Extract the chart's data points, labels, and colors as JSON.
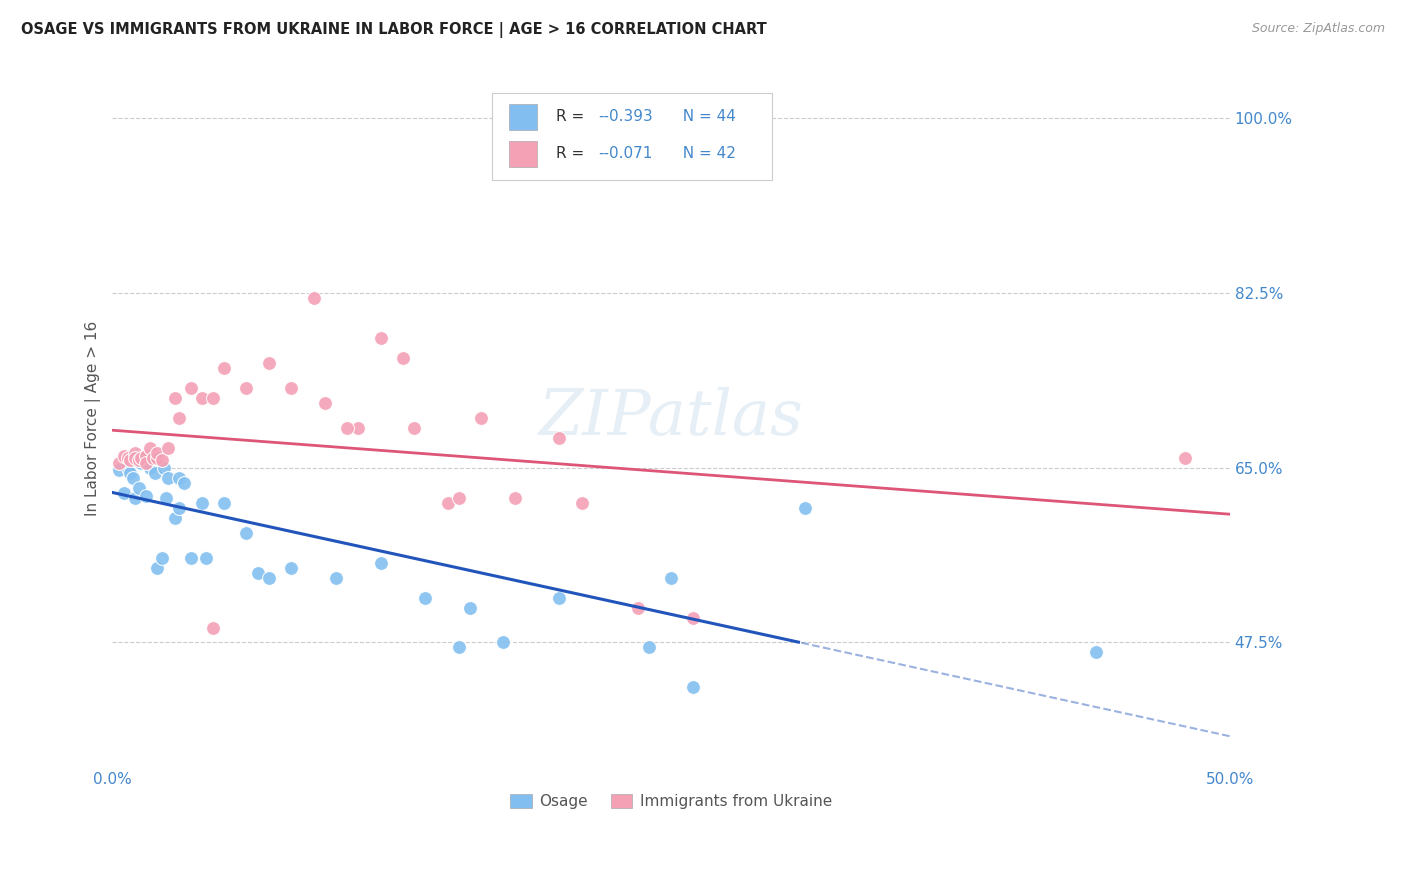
{
  "title": "OSAGE VS IMMIGRANTS FROM UKRAINE IN LABOR FORCE | AGE > 16 CORRELATION CHART",
  "source": "Source: ZipAtlas.com",
  "ylabel": "In Labor Force | Age > 16",
  "xlim": [
    0.0,
    0.5
  ],
  "ylim": [
    0.35,
    1.05
  ],
  "xticks": [
    0.0,
    0.1,
    0.2,
    0.3,
    0.4,
    0.5
  ],
  "xticklabels": [
    "0.0%",
    "",
    "",
    "",
    "",
    "50.0%"
  ],
  "ytick_values": [
    0.475,
    0.65,
    0.825,
    1.0
  ],
  "yticklabels": [
    "47.5%",
    "65.0%",
    "82.5%",
    "100.0%"
  ],
  "grid_color": "#cccccc",
  "background_color": "#ffffff",
  "watermark": "ZIPatlas",
  "legend_r1": "-0.393",
  "legend_n1": "44",
  "legend_r2": "-0.071",
  "legend_n2": "42",
  "legend_label1": "Osage",
  "legend_label2": "Immigrants from Ukraine",
  "osage_color": "#82bff0",
  "ukraine_color": "#f4a0b5",
  "line1_color": "#2255bb",
  "line2_color": "#dd5577",
  "title_color": "#222222",
  "axis_label_color": "#4488cc",
  "osage_x": [
    0.003,
    0.005,
    0.007,
    0.008,
    0.009,
    0.01,
    0.01,
    0.012,
    0.013,
    0.015,
    0.015,
    0.017,
    0.018,
    0.019,
    0.02,
    0.02,
    0.022,
    0.023,
    0.024,
    0.025,
    0.028,
    0.03,
    0.03,
    0.032,
    0.035,
    0.04,
    0.042,
    0.05,
    0.06,
    0.065,
    0.07,
    0.08,
    0.1,
    0.12,
    0.14,
    0.16,
    0.175,
    0.2,
    0.24,
    0.26,
    0.31,
    0.44,
    0.25,
    0.155
  ],
  "osage_y": [
    0.648,
    0.625,
    0.65,
    0.645,
    0.64,
    0.62,
    0.658,
    0.63,
    0.655,
    0.622,
    0.66,
    0.65,
    0.66,
    0.645,
    0.55,
    0.66,
    0.56,
    0.65,
    0.62,
    0.64,
    0.6,
    0.61,
    0.64,
    0.635,
    0.56,
    0.615,
    0.56,
    0.615,
    0.585,
    0.545,
    0.54,
    0.55,
    0.54,
    0.555,
    0.52,
    0.51,
    0.475,
    0.52,
    0.47,
    0.43,
    0.61,
    0.465,
    0.54,
    0.47
  ],
  "ukraine_x": [
    0.003,
    0.005,
    0.007,
    0.008,
    0.01,
    0.01,
    0.012,
    0.013,
    0.015,
    0.015,
    0.017,
    0.018,
    0.02,
    0.02,
    0.022,
    0.025,
    0.028,
    0.03,
    0.035,
    0.04,
    0.045,
    0.05,
    0.06,
    0.07,
    0.08,
    0.095,
    0.11,
    0.12,
    0.135,
    0.15,
    0.165,
    0.18,
    0.2,
    0.21,
    0.235,
    0.155,
    0.13,
    0.09,
    0.105,
    0.045,
    0.48,
    0.26
  ],
  "ukraine_y": [
    0.655,
    0.662,
    0.66,
    0.658,
    0.665,
    0.66,
    0.658,
    0.66,
    0.662,
    0.655,
    0.67,
    0.66,
    0.66,
    0.665,
    0.658,
    0.67,
    0.72,
    0.7,
    0.73,
    0.72,
    0.72,
    0.75,
    0.73,
    0.755,
    0.73,
    0.715,
    0.69,
    0.78,
    0.69,
    0.615,
    0.7,
    0.62,
    0.68,
    0.615,
    0.51,
    0.62,
    0.76,
    0.82,
    0.69,
    0.49,
    0.66,
    0.5
  ]
}
